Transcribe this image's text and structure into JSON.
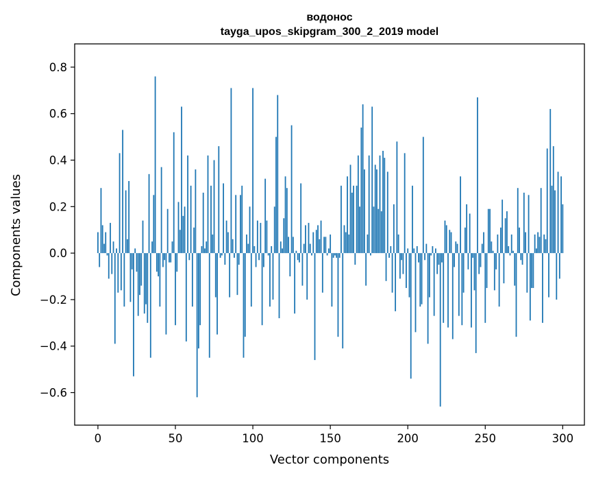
{
  "colors": {
    "bar": "#1f77b4",
    "axis": "#000000",
    "background": "#ffffff"
  },
  "chart_data": {
    "type": "bar",
    "title": "водонос",
    "subtitle": "tayga_upos_skipgram_300_2_2019 model",
    "xlabel": "Vector components",
    "ylabel": "Components values",
    "xlim": [
      -15,
      314
    ],
    "ylim": [
      -0.74,
      0.9
    ],
    "x_ticks": [
      0,
      50,
      100,
      150,
      200,
      250,
      300
    ],
    "x_tick_labels": [
      "0",
      "50",
      "100",
      "150",
      "200",
      "250",
      "300"
    ],
    "y_ticks": [
      -0.6,
      -0.4,
      -0.2,
      0.0,
      0.2,
      0.4,
      0.6,
      0.8
    ],
    "y_tick_labels": [
      "−0.6",
      "−0.4",
      "−0.2",
      "0.0",
      "0.2",
      "0.4",
      "0.6",
      "0.8"
    ],
    "grid": false,
    "values": [
      0.09,
      -0.06,
      0.28,
      0.12,
      0.04,
      0.09,
      -0.01,
      -0.11,
      0.13,
      -0.09,
      0.05,
      -0.39,
      0.02,
      -0.17,
      0.43,
      -0.16,
      0.53,
      -0.23,
      0.27,
      0.06,
      0.31,
      -0.21,
      -0.07,
      -0.53,
      0.02,
      -0.08,
      -0.27,
      -0.18,
      -0.14,
      0.14,
      -0.26,
      -0.22,
      -0.3,
      0.34,
      -0.45,
      0.05,
      0.25,
      0.76,
      -0.08,
      -0.1,
      -0.23,
      0.37,
      -0.06,
      -0.03,
      -0.35,
      0.19,
      -0.04,
      -0.04,
      0.05,
      0.52,
      -0.31,
      -0.08,
      0.22,
      0.1,
      0.63,
      0.16,
      0.2,
      -0.38,
      0.42,
      -0.03,
      0.29,
      -0.23,
      0.11,
      0.36,
      -0.62,
      -0.41,
      -0.31,
      0.03,
      0.26,
      0.02,
      0.05,
      0.42,
      -0.45,
      0.29,
      0.08,
      0.4,
      -0.19,
      -0.35,
      0.46,
      -0.02,
      -0.01,
      0.3,
      -0.05,
      0.14,
      0.09,
      -0.19,
      0.71,
      0.06,
      -0.02,
      0.25,
      -0.18,
      -0.05,
      0.25,
      0.29,
      -0.45,
      -0.36,
      0.08,
      0.04,
      0.2,
      -0.23,
      0.71,
      0.03,
      -0.06,
      0.14,
      -0.03,
      0.13,
      -0.31,
      -0.06,
      0.32,
      0.14,
      -0.01,
      -0.23,
      0.03,
      -0.2,
      0.2,
      0.5,
      0.68,
      -0.28,
      0.05,
      0.02,
      0.15,
      0.33,
      0.28,
      0.07,
      -0.1,
      0.55,
      0.07,
      -0.26,
      0.01,
      -0.03,
      -0.04,
      0.3,
      -0.14,
      0.04,
      0.12,
      -0.2,
      0.13,
      0.04,
      -0.01,
      0.09,
      -0.46,
      0.1,
      0.12,
      0.06,
      0.14,
      -0.17,
      0.07,
      0.07,
      -0.01,
      0.02,
      0.08,
      -0.23,
      -0.02,
      -0.01,
      -0.02,
      -0.36,
      -0.02,
      0.29,
      -0.41,
      0.12,
      0.09,
      0.33,
      0.08,
      0.38,
      0.26,
      0.29,
      -0.05,
      0.29,
      0.42,
      0.2,
      0.54,
      0.64,
      0.36,
      -0.14,
      0.08,
      0.42,
      -0.01,
      0.63,
      0.2,
      0.38,
      0.36,
      0.19,
      0.42,
      0.18,
      0.44,
      0.41,
      -0.12,
      0.35,
      -0.02,
      0.03,
      -0.17,
      0.21,
      -0.25,
      0.48,
      0.08,
      -0.11,
      -0.03,
      -0.09,
      0.43,
      -0.15,
      0.02,
      -0.19,
      -0.54,
      0.29,
      0.02,
      -0.34,
      0.03,
      -0.04,
      -0.23,
      -0.22,
      0.5,
      -0.03,
      0.04,
      -0.39,
      -0.19,
      -0.01,
      0.03,
      -0.27,
      0.02,
      -0.09,
      -0.05,
      -0.66,
      -0.04,
      -0.3,
      0.14,
      0.12,
      -0.32,
      0.1,
      0.09,
      -0.37,
      -0.06,
      0.05,
      0.04,
      -0.27,
      0.33,
      -0.31,
      -0.17,
      0.11,
      0.21,
      -0.07,
      0.17,
      -0.32,
      -0.02,
      -0.16,
      -0.43,
      0.67,
      -0.09,
      -0.06,
      0.04,
      0.09,
      -0.3,
      -0.15,
      0.19,
      0.19,
      0.05,
      0.01,
      -0.16,
      -0.07,
      0.08,
      -0.23,
      0.11,
      0.23,
      -0.13,
      0.15,
      0.18,
      0.03,
      -0.01,
      0.08,
      0.01,
      -0.14,
      -0.36,
      0.28,
      0.11,
      -0.03,
      -0.05,
      0.26,
      0.09,
      -0.17,
      0.25,
      -0.29,
      -0.15,
      -0.15,
      0.08,
      0.02,
      0.09,
      0.07,
      0.28,
      -0.3,
      0.08,
      0.06,
      0.45,
      -0.19,
      0.62,
      0.29,
      0.46,
      0.27,
      -0.2,
      0.35,
      -0.11,
      0.33,
      0.21
    ]
  }
}
